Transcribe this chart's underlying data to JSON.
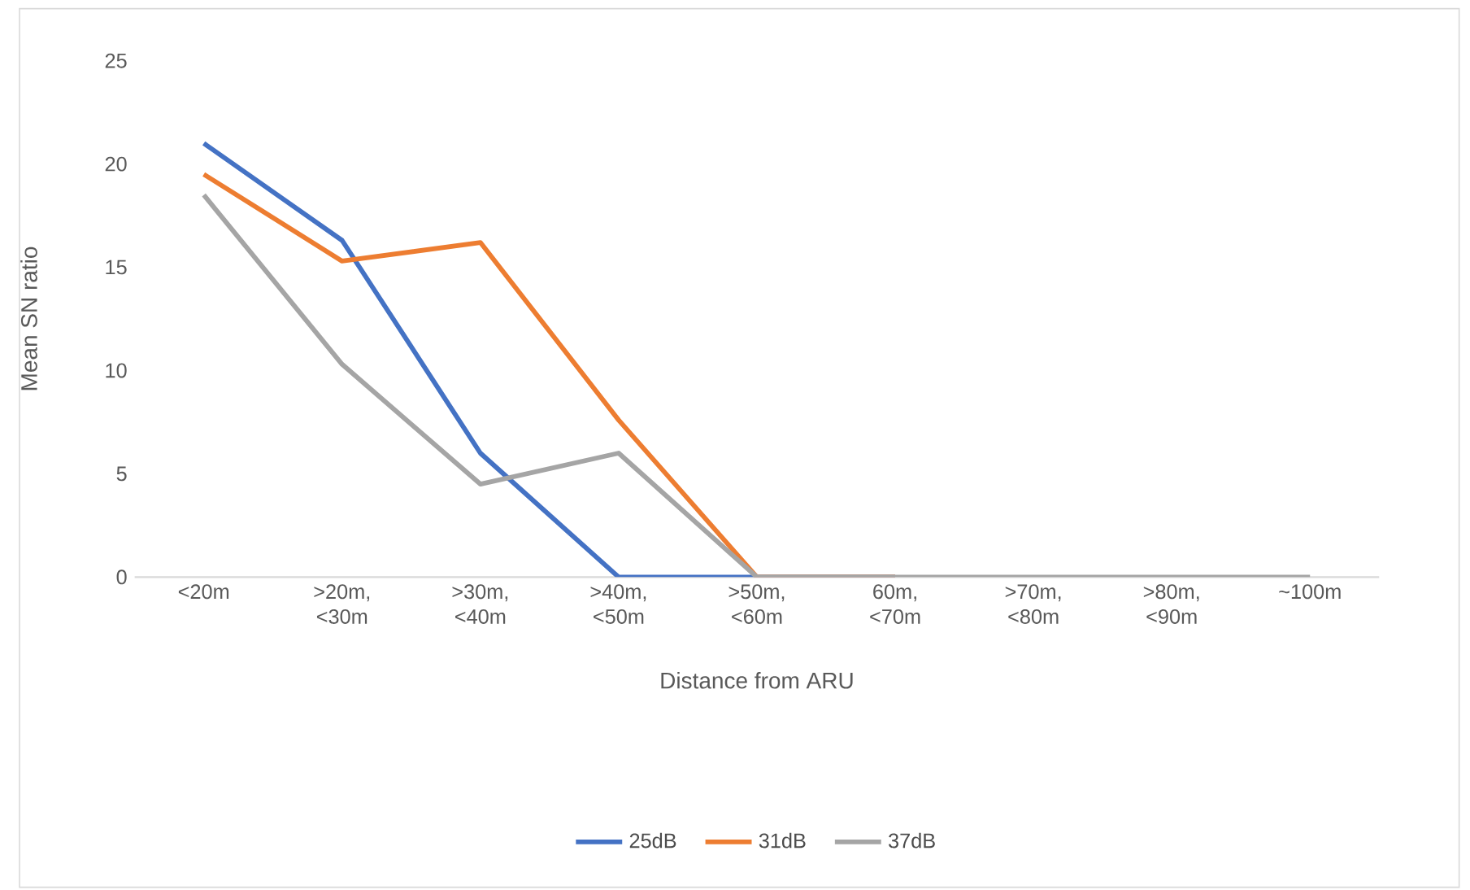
{
  "chart_data": {
    "type": "line",
    "xlabel": "Distance from ARU",
    "ylabel": "Mean SN ratio",
    "categories": [
      "<20m",
      ">20m, <30m",
      ">30m, <40m",
      ">40m, <50m",
      ">50m, <60m",
      "60m, <70m",
      ">70m, <80m",
      ">80m, <90m",
      "~100m"
    ],
    "series": [
      {
        "name": "25dB",
        "color": "#4472c4",
        "values": [
          21,
          16.3,
          6,
          0,
          0,
          0,
          null,
          null,
          null
        ]
      },
      {
        "name": "31dB",
        "color": "#ed7d31",
        "values": [
          19.5,
          15.3,
          16.2,
          7.6,
          0,
          0,
          null,
          null,
          null
        ]
      },
      {
        "name": "37dB",
        "color": "#a5a5a5",
        "values": [
          18.5,
          10.3,
          4.5,
          6,
          0,
          0,
          0,
          0,
          0
        ]
      }
    ],
    "ylim": [
      0,
      25
    ],
    "yticks": [
      0,
      5,
      10,
      15,
      20,
      25
    ],
    "grid": false,
    "legend": "bottom",
    "marker": "none",
    "line_style": "solid"
  }
}
